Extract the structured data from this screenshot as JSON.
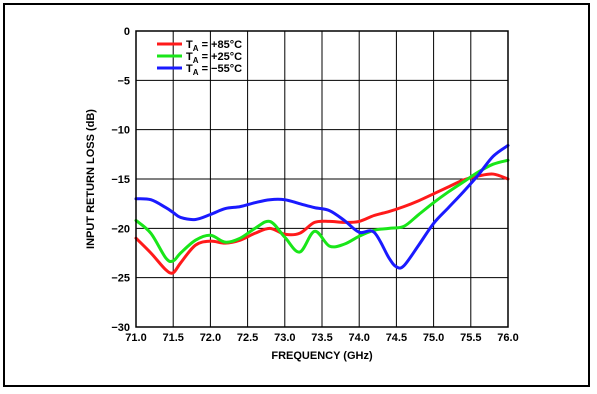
{
  "chart_data": {
    "type": "line",
    "xlabel": "FREQUENCY (GHz)",
    "ylabel": "INPUT RETURN LOSS (dB)",
    "xlim": [
      71.0,
      76.0
    ],
    "ylim": [
      -30,
      0
    ],
    "x_ticks": [
      "71.0",
      "71.5",
      "72.0",
      "72.5",
      "73.0",
      "73.5",
      "74.0",
      "74.5",
      "75.0",
      "75.5",
      "76.0"
    ],
    "y_ticks": [
      "0",
      "−5",
      "−10",
      "−15",
      "−20",
      "−25",
      "−30"
    ],
    "grid": true,
    "legend_position": "top-left",
    "series": [
      {
        "name": "T_A = +85°C",
        "label_main": "T",
        "label_sub": "A",
        "label_rest": " = +85°C",
        "color": "#ff1a1a",
        "x": [
          71.0,
          71.2,
          71.4,
          71.5,
          71.6,
          71.8,
          72.0,
          72.2,
          72.4,
          72.6,
          72.8,
          73.0,
          73.2,
          73.4,
          73.6,
          73.8,
          74.0,
          74.2,
          74.4,
          74.6,
          74.8,
          75.0,
          75.2,
          75.4,
          75.6,
          75.8,
          76.0
        ],
        "y": [
          -21.0,
          -22.5,
          -24.2,
          -24.5,
          -23.5,
          -21.7,
          -21.3,
          -21.5,
          -21.2,
          -20.5,
          -20.0,
          -20.6,
          -20.5,
          -19.4,
          -19.3,
          -19.4,
          -19.3,
          -18.7,
          -18.3,
          -17.8,
          -17.2,
          -16.5,
          -15.8,
          -15.1,
          -14.7,
          -14.5,
          -15.0
        ]
      },
      {
        "name": "T_A = +25°C",
        "label_main": "T",
        "label_sub": "A",
        "label_rest": " = +25°C",
        "color": "#19e619",
        "x": [
          71.0,
          71.2,
          71.4,
          71.5,
          71.6,
          71.8,
          72.0,
          72.2,
          72.4,
          72.6,
          72.8,
          73.0,
          73.2,
          73.4,
          73.6,
          73.8,
          74.0,
          74.2,
          74.4,
          74.6,
          74.8,
          75.0,
          75.2,
          75.4,
          75.6,
          75.8,
          76.0
        ],
        "y": [
          -19.2,
          -20.5,
          -23.0,
          -23.3,
          -22.5,
          -21.2,
          -20.7,
          -21.4,
          -21.0,
          -20.0,
          -19.3,
          -20.9,
          -22.4,
          -20.3,
          -21.8,
          -21.6,
          -20.8,
          -20.2,
          -20.0,
          -19.8,
          -18.6,
          -17.4,
          -16.3,
          -15.3,
          -14.3,
          -13.5,
          -13.1
        ]
      },
      {
        "name": "T_A = −55°C",
        "label_main": "T",
        "label_sub": "A",
        "label_rest": " = −55°C",
        "color": "#1a1aff",
        "x": [
          71.0,
          71.2,
          71.4,
          71.5,
          71.6,
          71.8,
          72.0,
          72.2,
          72.4,
          72.6,
          72.8,
          73.0,
          73.2,
          73.4,
          73.6,
          73.8,
          74.0,
          74.2,
          74.4,
          74.5,
          74.6,
          74.8,
          75.0,
          75.2,
          75.4,
          75.6,
          75.8,
          76.0
        ],
        "y": [
          -17.0,
          -17.1,
          -17.9,
          -18.4,
          -18.9,
          -19.1,
          -18.6,
          -18.0,
          -17.8,
          -17.4,
          -17.1,
          -17.1,
          -17.5,
          -17.9,
          -18.2,
          -19.2,
          -20.4,
          -20.4,
          -23.0,
          -23.9,
          -23.8,
          -21.7,
          -19.5,
          -17.9,
          -16.3,
          -14.6,
          -12.7,
          -11.6
        ]
      }
    ]
  }
}
